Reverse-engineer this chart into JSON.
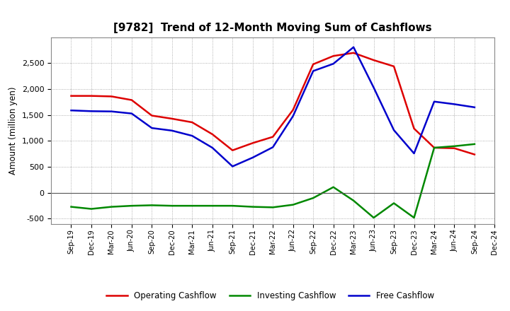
{
  "title": "[9782]  Trend of 12-Month Moving Sum of Cashflows",
  "ylabel": "Amount (million yen)",
  "x_labels": [
    "Sep-19",
    "Dec-19",
    "Mar-20",
    "Jun-20",
    "Sep-20",
    "Dec-20",
    "Mar-21",
    "Jun-21",
    "Sep-21",
    "Dec-21",
    "Mar-22",
    "Jun-22",
    "Sep-22",
    "Dec-22",
    "Mar-23",
    "Jun-23",
    "Sep-23",
    "Dec-23",
    "Mar-24",
    "Jun-24",
    "Sep-24",
    "Dec-24"
  ],
  "operating": [
    1870,
    1870,
    1860,
    1790,
    1490,
    1430,
    1360,
    1130,
    820,
    960,
    1080,
    1600,
    2480,
    2640,
    2700,
    2560,
    2440,
    1240,
    870,
    860,
    740,
    null
  ],
  "investing": [
    -270,
    -310,
    -270,
    -250,
    -240,
    -250,
    -250,
    -250,
    -250,
    -270,
    -280,
    -230,
    -100,
    110,
    -150,
    -480,
    -200,
    -480,
    870,
    900,
    940,
    null
  ],
  "free": [
    1590,
    1575,
    1570,
    1530,
    1250,
    1200,
    1100,
    870,
    510,
    680,
    880,
    1480,
    2350,
    2490,
    2810,
    2030,
    1210,
    760,
    1760,
    1710,
    1650,
    null
  ],
  "operating_color": "#dd0000",
  "investing_color": "#008800",
  "free_color": "#0000cc",
  "bg_color": "#ffffff",
  "plot_bg_color": "#ffffff",
  "grid_color": "#999999",
  "ylim": [
    -600,
    3000
  ],
  "yticks": [
    -500,
    0,
    500,
    1000,
    1500,
    2000,
    2500
  ],
  "legend_labels": [
    "Operating Cashflow",
    "Investing Cashflow",
    "Free Cashflow"
  ]
}
